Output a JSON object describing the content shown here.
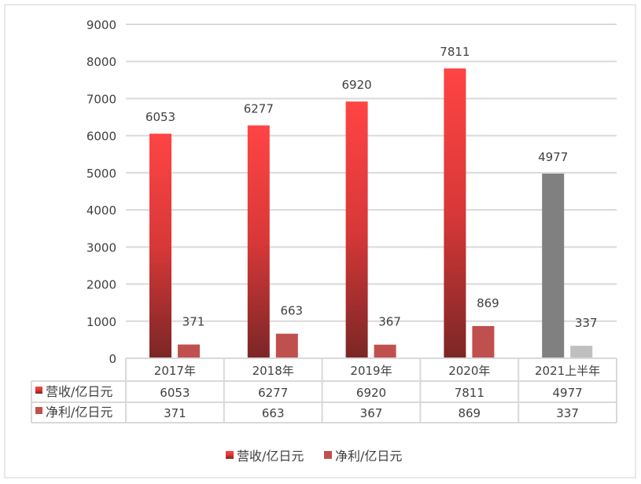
{
  "chart_data": {
    "type": "bar",
    "title": "",
    "xlabel": "",
    "ylabel": "",
    "ylim": [
      0,
      9000
    ],
    "yticks": [
      0,
      1000,
      2000,
      3000,
      4000,
      5000,
      6000,
      7000,
      8000,
      9000
    ],
    "grid": true,
    "legend_position": "bottom",
    "categories": [
      "2017年",
      "2018年",
      "2019年",
      "2020年",
      "2021上半年"
    ],
    "series": [
      {
        "name": "营收/亿日元",
        "values": [
          6053,
          6277,
          6920,
          7811,
          4977
        ],
        "color": "#ff4444",
        "color_dark": "#7b2626",
        "highlight_last_color": "#808080"
      },
      {
        "name": "净利/亿日元",
        "values": [
          371,
          663,
          367,
          869,
          337
        ],
        "color": "#c0504d",
        "highlight_last_color": "#bfbfbf"
      }
    ],
    "data_table": true
  }
}
